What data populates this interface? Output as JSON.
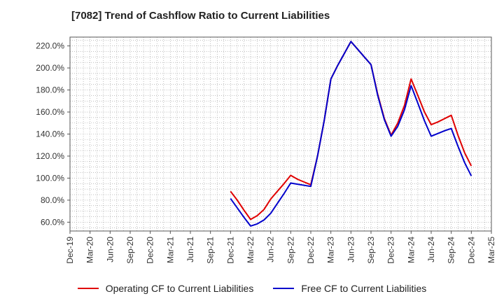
{
  "chart_data": {
    "type": "line",
    "title": "[7082]  Trend of Cashflow Ratio to Current Liabilities",
    "xlabel": "",
    "ylabel": "",
    "x_ticks": [
      "Dec-19",
      "Mar-20",
      "Jun-20",
      "Sep-20",
      "Dec-20",
      "Mar-21",
      "Jun-21",
      "Sep-21",
      "Dec-21",
      "Mar-22",
      "Jun-22",
      "Sep-22",
      "Dec-22",
      "Mar-23",
      "Jun-23",
      "Sep-23",
      "Dec-23",
      "Mar-24",
      "Jun-24",
      "Sep-24",
      "Dec-24",
      "Mar-25"
    ],
    "y_ticks": [
      "60.0%",
      "80.0%",
      "100.0%",
      "120.0%",
      "140.0%",
      "160.0%",
      "180.0%",
      "200.0%",
      "220.0%"
    ],
    "ylim": [
      52,
      228
    ],
    "grid": true,
    "legend_position": "bottom",
    "series": [
      {
        "name": "Operating CF to Current Liabilities",
        "color": "#e00000",
        "points": [
          {
            "x": "Dec-21",
            "y": 88.0
          },
          {
            "x": "Jan-22",
            "y": 80.0
          },
          {
            "x": "Feb-22",
            "y": 71.0
          },
          {
            "x": "Mar-22",
            "y": 62.5
          },
          {
            "x": "Apr-22",
            "y": 66.0
          },
          {
            "x": "May-22",
            "y": 71.5
          },
          {
            "x": "Jun-22",
            "y": 81.0
          },
          {
            "x": "Jul-22",
            "y": 88.0
          },
          {
            "x": "Aug-22",
            "y": 95.0
          },
          {
            "x": "Sep-22",
            "y": 102.5
          },
          {
            "x": "Oct-22",
            "y": 99.0
          },
          {
            "x": "Nov-22",
            "y": 96.5
          },
          {
            "x": "Dec-22",
            "y": 94.0
          },
          {
            "x": "Jan-23",
            "y": 120.0
          },
          {
            "x": "Feb-23",
            "y": 152.0
          },
          {
            "x": "Mar-23",
            "y": 190.0
          },
          {
            "x": "Apr-23",
            "y": 202.0
          },
          {
            "x": "May-23",
            "y": 213.0
          },
          {
            "x": "Jun-23",
            "y": 224.0
          },
          {
            "x": "Jul-23",
            "y": 217.0
          },
          {
            "x": "Aug-23",
            "y": 210.0
          },
          {
            "x": "Sep-23",
            "y": 203.0
          },
          {
            "x": "Oct-23",
            "y": 176.0
          },
          {
            "x": "Nov-23",
            "y": 154.0
          },
          {
            "x": "Dec-23",
            "y": 139.0
          },
          {
            "x": "Jan-24",
            "y": 150.0
          },
          {
            "x": "Feb-24",
            "y": 166.0
          },
          {
            "x": "Mar-24",
            "y": 190.0
          },
          {
            "x": "Apr-24",
            "y": 175.0
          },
          {
            "x": "May-24",
            "y": 160.0
          },
          {
            "x": "Jun-24",
            "y": 148.5
          },
          {
            "x": "Jul-24",
            "y": 151.0
          },
          {
            "x": "Aug-24",
            "y": 154.0
          },
          {
            "x": "Sep-24",
            "y": 157.0
          },
          {
            "x": "Oct-24",
            "y": 139.0
          },
          {
            "x": "Nov-24",
            "y": 123.0
          },
          {
            "x": "Dec-24",
            "y": 111.0
          }
        ]
      },
      {
        "name": "Free CF to Current Liabilities",
        "color": "#0000cc",
        "points": [
          {
            "x": "Dec-21",
            "y": 81.5
          },
          {
            "x": "Jan-22",
            "y": 73.0
          },
          {
            "x": "Feb-22",
            "y": 64.5
          },
          {
            "x": "Mar-22",
            "y": 56.5
          },
          {
            "x": "Apr-22",
            "y": 58.5
          },
          {
            "x": "May-22",
            "y": 62.0
          },
          {
            "x": "Jun-22",
            "y": 68.0
          },
          {
            "x": "Jul-22",
            "y": 77.0
          },
          {
            "x": "Aug-22",
            "y": 86.0
          },
          {
            "x": "Sep-22",
            "y": 95.5
          },
          {
            "x": "Oct-22",
            "y": 94.5
          },
          {
            "x": "Nov-22",
            "y": 93.5
          },
          {
            "x": "Dec-22",
            "y": 92.5
          },
          {
            "x": "Jan-23",
            "y": 120.0
          },
          {
            "x": "Feb-23",
            "y": 152.0
          },
          {
            "x": "Mar-23",
            "y": 190.0
          },
          {
            "x": "Apr-23",
            "y": 202.0
          },
          {
            "x": "May-23",
            "y": 213.0
          },
          {
            "x": "Jun-23",
            "y": 224.0
          },
          {
            "x": "Jul-23",
            "y": 217.0
          },
          {
            "x": "Aug-23",
            "y": 210.0
          },
          {
            "x": "Sep-23",
            "y": 203.0
          },
          {
            "x": "Oct-23",
            "y": 175.0
          },
          {
            "x": "Nov-23",
            "y": 153.0
          },
          {
            "x": "Dec-23",
            "y": 138.0
          },
          {
            "x": "Jan-24",
            "y": 147.0
          },
          {
            "x": "Feb-24",
            "y": 162.0
          },
          {
            "x": "Mar-24",
            "y": 184.0
          },
          {
            "x": "Apr-24",
            "y": 168.0
          },
          {
            "x": "May-24",
            "y": 152.0
          },
          {
            "x": "Jun-24",
            "y": 138.0
          },
          {
            "x": "Jul-24",
            "y": 140.5
          },
          {
            "x": "Aug-24",
            "y": 143.0
          },
          {
            "x": "Sep-24",
            "y": 145.0
          },
          {
            "x": "Oct-24",
            "y": 129.0
          },
          {
            "x": "Nov-24",
            "y": 114.0
          },
          {
            "x": "Dec-24",
            "y": 102.0
          }
        ]
      }
    ]
  }
}
